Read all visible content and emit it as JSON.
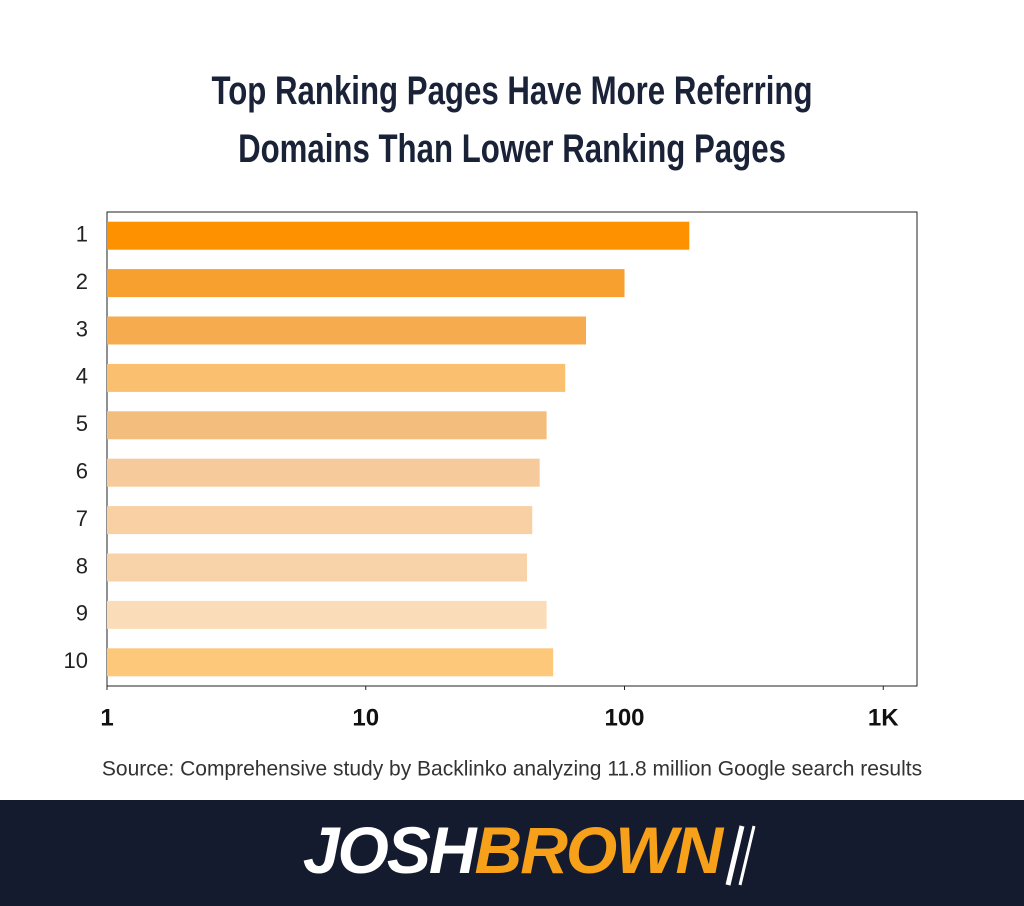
{
  "chart_data": {
    "type": "barh",
    "title": "Top Ranking Pages Have More Referring Domains Than Lower Ranking Pages",
    "categories": [
      "1",
      "2",
      "3",
      "4",
      "5",
      "6",
      "7",
      "8",
      "9",
      "10"
    ],
    "values": [
      178,
      100,
      71,
      59,
      50,
      47,
      44,
      42,
      50,
      53
    ],
    "colors": [
      "#fd9100",
      "#f7a030",
      "#f6ac4e",
      "#fbbf70",
      "#f3bd7d",
      "#f6ca9a",
      "#f8d0a3",
      "#f8d2a8",
      "#fbdcb8",
      "#fdc87a"
    ],
    "xscale": "log",
    "xlim": [
      1,
      1350
    ],
    "xticks": [
      1,
      10,
      100,
      {
        "value": 1000,
        "label": "1K"
      }
    ],
    "grid": false,
    "source": "Source: Comprehensive study by Backlinko analyzing 11.8 million Google search results"
  },
  "brand": {
    "first": "JOSH",
    "second": "BROWN"
  }
}
